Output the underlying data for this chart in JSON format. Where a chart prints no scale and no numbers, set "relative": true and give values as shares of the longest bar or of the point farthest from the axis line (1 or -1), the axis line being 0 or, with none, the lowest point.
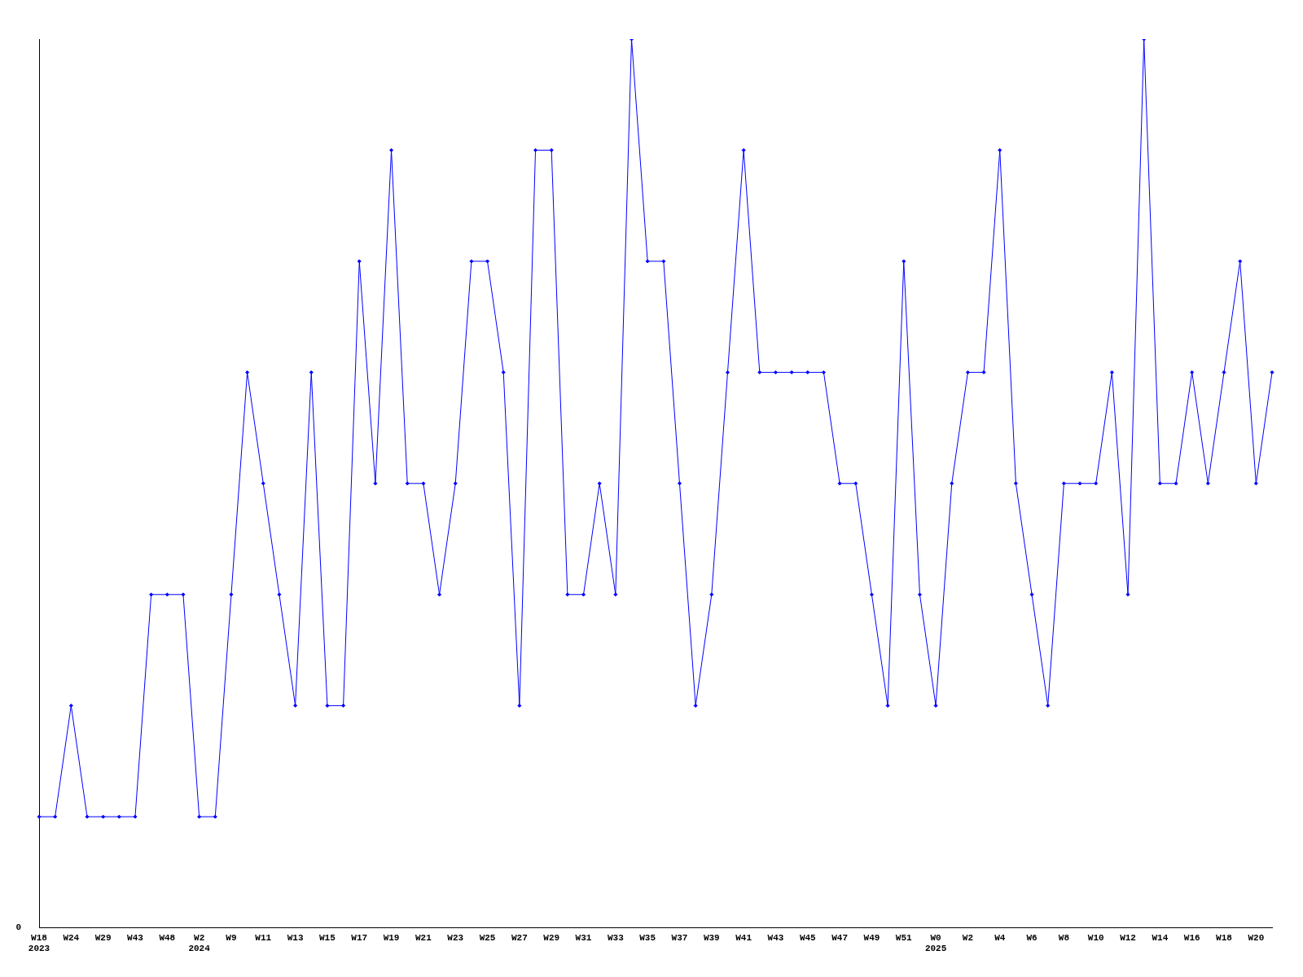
{
  "chart_data": {
    "type": "line",
    "relative": true,
    "color": "#0000ff",
    "marker": "diamond",
    "line_style": "solid",
    "grid": false,
    "legend": false,
    "annotations": [
      "0"
    ],
    "categories": [
      "W18\n2023",
      null,
      "W24",
      null,
      "W29",
      null,
      "W43",
      null,
      "W48",
      null,
      "W2\n2024",
      null,
      "W9",
      null,
      "W11",
      null,
      "W13",
      null,
      "W15",
      null,
      "W17",
      null,
      "W19",
      null,
      "W21",
      null,
      "W23",
      null,
      "W25",
      null,
      "W27",
      null,
      "W29",
      null,
      "W31",
      null,
      "W33",
      null,
      "W35",
      null,
      "W37",
      null,
      "W39",
      null,
      "W41",
      null,
      "W43",
      null,
      "W45",
      null,
      "W47",
      null,
      "W49",
      null,
      "W51",
      null,
      "W0\n2025",
      null,
      "W2",
      null,
      "W4",
      null,
      "W6",
      null,
      "W8",
      null,
      "W10",
      null,
      "W12",
      null,
      "W14",
      null,
      "W16",
      null,
      "W18",
      null,
      "W20",
      null
    ],
    "values": [
      0.125,
      0.125,
      0.25,
      0.125,
      0.125,
      0.125,
      0.125,
      0.375,
      0.375,
      0.375,
      0.125,
      0.125,
      0.375,
      0.625,
      0.5,
      0.375,
      0.25,
      0.625,
      0.25,
      0.25,
      0.75,
      0.5,
      0.875,
      0.5,
      0.5,
      0.375,
      0.5,
      0.75,
      0.75,
      0.625,
      0.25,
      0.875,
      0.875,
      0.375,
      0.375,
      0.5,
      0.375,
      1,
      0.75,
      0.75,
      0.5,
      0.25,
      0.375,
      0.625,
      0.875,
      0.625,
      0.625,
      0.625,
      0.625,
      0.625,
      0.5,
      0.5,
      0.375,
      0.25,
      0.75,
      0.375,
      0.25,
      0.5,
      0.625,
      0.625,
      0.875,
      0.5,
      0.375,
      0.25,
      0.5,
      0.5,
      0.5,
      0.625,
      0.375,
      1,
      0.5,
      0.5,
      0.625,
      0.5,
      0.625,
      0.75,
      0.5,
      0.625
    ]
  }
}
